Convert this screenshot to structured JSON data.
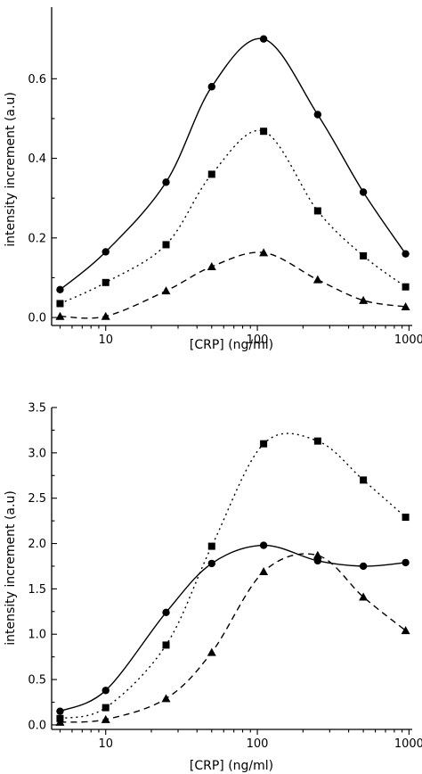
{
  "chart_data": [
    {
      "type": "line",
      "xlabel": "[CRP] (ng/ml)",
      "ylabel": "intensity increment  (a.u)",
      "x_scale": "log",
      "xlim": [
        4.4,
        1050
      ],
      "ylim": [
        -0.02,
        0.78
      ],
      "x_ticks": [
        10,
        100,
        1000
      ],
      "x_tick_labels": [
        "10",
        "100",
        "1000"
      ],
      "y_ticks": [
        0.0,
        0.2,
        0.4,
        0.6
      ],
      "y_tick_labels": [
        "0.0",
        "0.2",
        "0.4",
        "0.6"
      ],
      "series": [
        {
          "marker": "circle",
          "line": "solid",
          "x": [
            5,
            10,
            25,
            50,
            110,
            250,
            500,
            950
          ],
          "y": [
            0.07,
            0.165,
            0.34,
            0.58,
            0.7,
            0.51,
            0.315,
            0.16
          ]
        },
        {
          "marker": "square",
          "line": "dotted",
          "x": [
            5,
            10,
            25,
            50,
            110,
            250,
            500,
            950
          ],
          "y": [
            0.035,
            0.088,
            0.183,
            0.36,
            0.468,
            0.268,
            0.155,
            0.077
          ]
        },
        {
          "marker": "triangle",
          "line": "dashed",
          "x": [
            5,
            10,
            25,
            50,
            110,
            250,
            500,
            950
          ],
          "y": [
            0.003,
            0.003,
            0.067,
            0.128,
            0.163,
            0.095,
            0.043,
            0.027
          ]
        }
      ]
    },
    {
      "type": "line",
      "xlabel": "[CRP] (ng/ml)",
      "ylabel": "intensity increment (a.u)",
      "x_scale": "log",
      "xlim": [
        4.4,
        1050
      ],
      "ylim": [
        -0.05,
        3.5
      ],
      "x_ticks": [
        10,
        100,
        1000
      ],
      "x_tick_labels": [
        "10",
        "100",
        "1000"
      ],
      "y_ticks": [
        0.0,
        0.5,
        1.0,
        1.5,
        2.0,
        2.5,
        3.0,
        3.5
      ],
      "y_tick_labels": [
        "0.0",
        "0.5",
        "1.0",
        "1.5",
        "2.0",
        "2.5",
        "3.0",
        "3.5"
      ],
      "series": [
        {
          "marker": "circle",
          "line": "solid",
          "x": [
            5,
            10,
            25,
            50,
            110,
            250,
            500,
            950
          ],
          "y": [
            0.15,
            0.38,
            1.24,
            1.78,
            1.98,
            1.81,
            1.75,
            1.79
          ]
        },
        {
          "marker": "square",
          "line": "dotted",
          "x": [
            5,
            10,
            25,
            50,
            110,
            250,
            500,
            950
          ],
          "y": [
            0.07,
            0.19,
            0.88,
            1.97,
            3.1,
            3.13,
            2.7,
            2.29
          ]
        },
        {
          "marker": "triangle",
          "line": "dashed",
          "x": [
            5,
            10,
            25,
            50,
            110,
            250,
            500,
            950
          ],
          "y": [
            0.03,
            0.06,
            0.29,
            0.8,
            1.69,
            1.87,
            1.41,
            1.04
          ]
        }
      ]
    }
  ]
}
